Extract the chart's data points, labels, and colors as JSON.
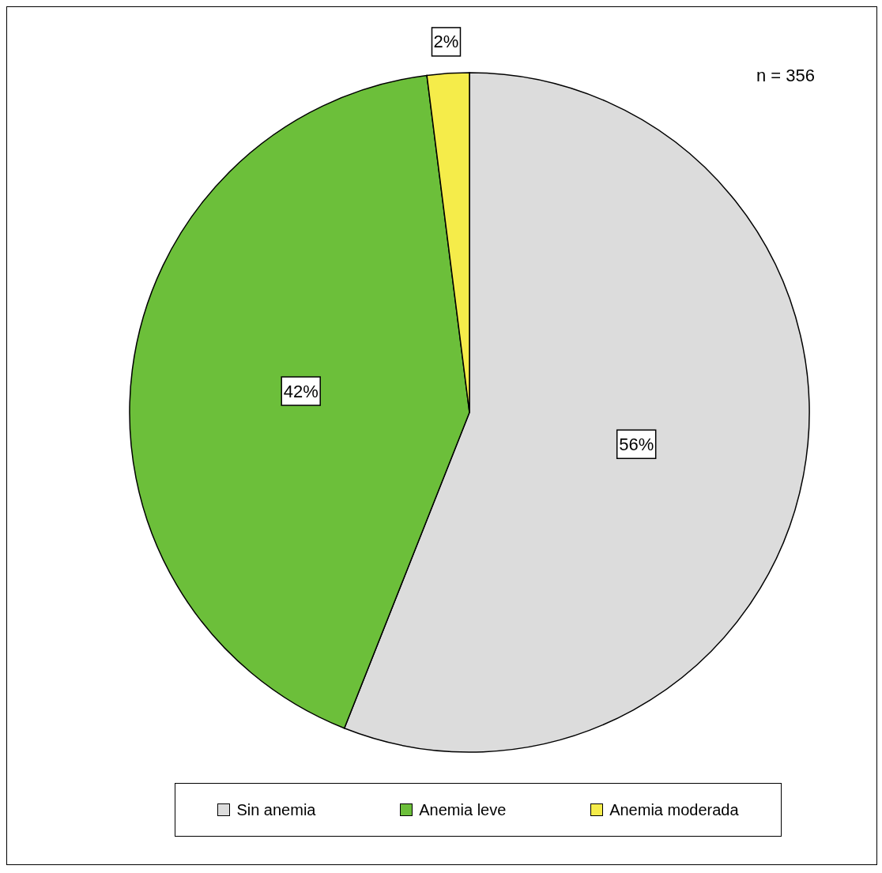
{
  "chart_data": {
    "type": "pie",
    "categories": [
      "Sin anemia",
      "Anemia leve",
      "Anemia moderada"
    ],
    "values": [
      56,
      42,
      2
    ],
    "colors": [
      "#dcdcdc",
      "#6cbf3a",
      "#f5ec4a"
    ],
    "value_labels": [
      "56%",
      "42%",
      "2%"
    ],
    "legend": "bottom",
    "annotations": [
      "n = 356"
    ]
  }
}
